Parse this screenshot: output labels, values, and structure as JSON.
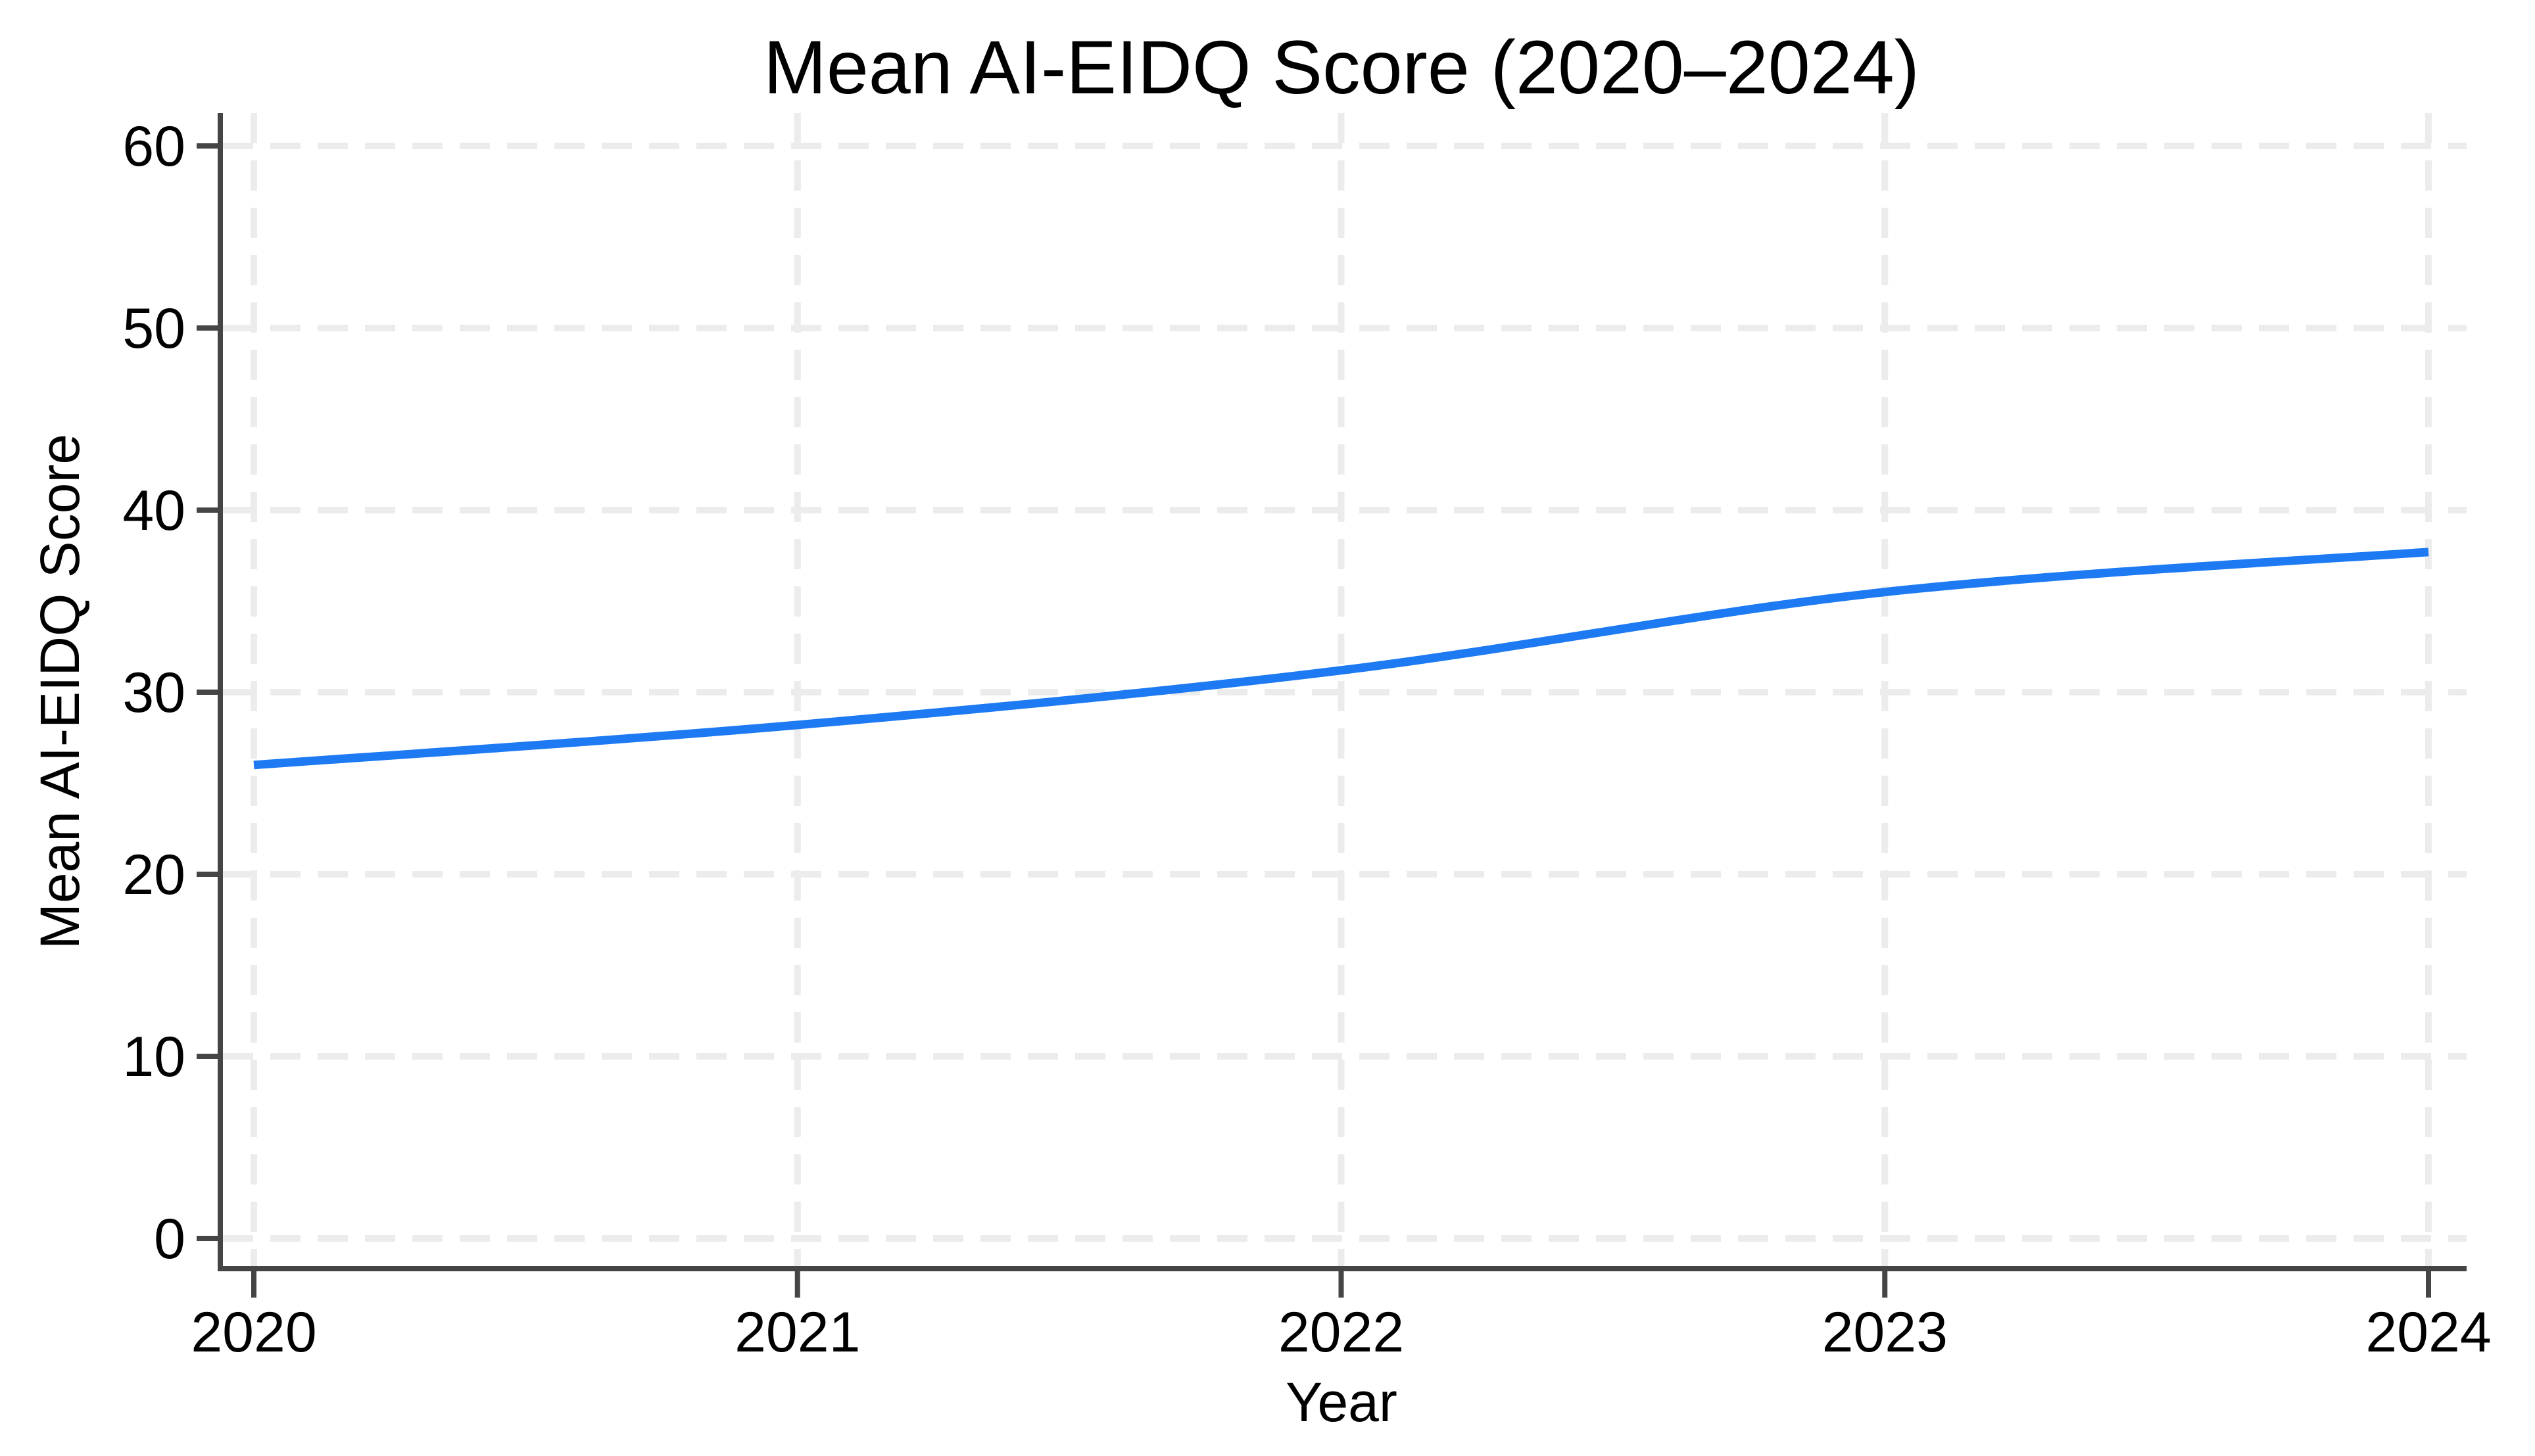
{
  "page": {
    "background": "#ffffff"
  },
  "chart_data": {
    "type": "line",
    "title": "Mean AI-EIDQ Score (2020–2024)",
    "xlabel": "Year",
    "ylabel": "Mean AI-EIDQ Score",
    "x": [
      2020,
      2021,
      2022,
      2023,
      2024
    ],
    "series": [
      {
        "name": "Mean AI-EIDQ Score",
        "values": [
          26,
          28.2,
          31.2,
          35.5,
          37.7
        ]
      }
    ],
    "xtick_labels": [
      "2020",
      "2021",
      "2022",
      "2023",
      "2024"
    ],
    "ytick_labels": [
      "0",
      "10",
      "20",
      "30",
      "40",
      "50",
      "60"
    ],
    "ytick_values": [
      0,
      10,
      20,
      30,
      40,
      50,
      60
    ],
    "xlim": [
      2020,
      2024
    ],
    "ylim": [
      0,
      60
    ],
    "grid": "dashed light-gray grid at every x tick and y tick",
    "legend_position": "none",
    "colors": {
      "line": "#1d7af2",
      "axis": "#454545",
      "grid": "#ececec",
      "text": "#000000"
    }
  }
}
